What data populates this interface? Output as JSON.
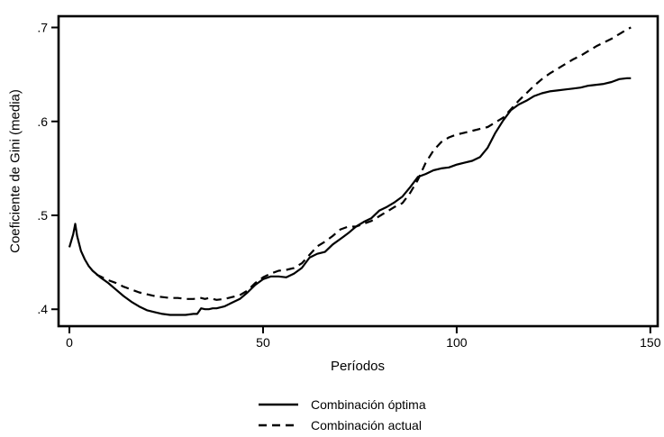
{
  "chart_data": {
    "type": "line",
    "title": "",
    "xlabel": "Períodos",
    "ylabel": "Coeficiente de Gini (media)",
    "xlim": [
      -2.8,
      151.9
    ],
    "ylim": [
      0.382,
      0.712
    ],
    "grid": false,
    "legend_position": "bottom",
    "colors": {
      "line": "#000000",
      "background": "#ffffff",
      "text": "#000000"
    },
    "xticks": [
      {
        "value": 0,
        "label": "0"
      },
      {
        "value": 50,
        "label": "50"
      },
      {
        "value": 100,
        "label": "100"
      },
      {
        "value": 150,
        "label": "150"
      }
    ],
    "yticks": [
      {
        "value": 0.4,
        "label": ".4"
      },
      {
        "value": 0.5,
        "label": ".5"
      },
      {
        "value": 0.6,
        "label": ".6"
      },
      {
        "value": 0.7,
        "label": ".7"
      }
    ],
    "series": [
      {
        "name": "Combinación óptima",
        "style": "solid",
        "dash": "none",
        "points": [
          [
            0,
            0.466
          ],
          [
            1,
            0.48
          ],
          [
            1.5,
            0.491
          ],
          [
            2,
            0.478
          ],
          [
            3,
            0.462
          ],
          [
            4,
            0.453
          ],
          [
            5,
            0.446
          ],
          [
            6,
            0.441
          ],
          [
            8,
            0.434
          ],
          [
            10,
            0.428
          ],
          [
            12,
            0.421
          ],
          [
            14,
            0.414
          ],
          [
            16,
            0.408
          ],
          [
            18,
            0.403
          ],
          [
            20,
            0.399
          ],
          [
            22,
            0.397
          ],
          [
            24,
            0.395
          ],
          [
            26,
            0.394
          ],
          [
            28,
            0.394
          ],
          [
            30,
            0.394
          ],
          [
            32,
            0.395
          ],
          [
            33,
            0.395
          ],
          [
            34,
            0.401
          ],
          [
            35,
            0.4
          ],
          [
            36,
            0.4
          ],
          [
            37,
            0.401
          ],
          [
            38,
            0.401
          ],
          [
            40,
            0.403
          ],
          [
            42,
            0.407
          ],
          [
            44,
            0.411
          ],
          [
            46,
            0.418
          ],
          [
            48,
            0.426
          ],
          [
            50,
            0.432
          ],
          [
            52,
            0.435
          ],
          [
            54,
            0.435
          ],
          [
            56,
            0.434
          ],
          [
            58,
            0.438
          ],
          [
            60,
            0.444
          ],
          [
            62,
            0.455
          ],
          [
            64,
            0.459
          ],
          [
            66,
            0.461
          ],
          [
            68,
            0.469
          ],
          [
            70,
            0.475
          ],
          [
            72,
            0.481
          ],
          [
            74,
            0.488
          ],
          [
            76,
            0.493
          ],
          [
            78,
            0.497
          ],
          [
            80,
            0.505
          ],
          [
            82,
            0.509
          ],
          [
            84,
            0.514
          ],
          [
            86,
            0.52
          ],
          [
            88,
            0.53
          ],
          [
            90,
            0.541
          ],
          [
            92,
            0.544
          ],
          [
            94,
            0.548
          ],
          [
            96,
            0.55
          ],
          [
            98,
            0.551
          ],
          [
            100,
            0.554
          ],
          [
            102,
            0.556
          ],
          [
            104,
            0.558
          ],
          [
            106,
            0.562
          ],
          [
            108,
            0.572
          ],
          [
            110,
            0.588
          ],
          [
            112,
            0.601
          ],
          [
            114,
            0.612
          ],
          [
            116,
            0.618
          ],
          [
            118,
            0.622
          ],
          [
            120,
            0.627
          ],
          [
            122,
            0.63
          ],
          [
            124,
            0.632
          ],
          [
            126,
            0.633
          ],
          [
            128,
            0.634
          ],
          [
            130,
            0.635
          ],
          [
            132,
            0.636
          ],
          [
            134,
            0.638
          ],
          [
            136,
            0.639
          ],
          [
            138,
            0.64
          ],
          [
            140,
            0.642
          ],
          [
            142,
            0.645
          ],
          [
            144,
            0.646
          ],
          [
            145,
            0.646
          ]
        ]
      },
      {
        "name": "Combinación actual",
        "style": "dashed",
        "dash": "9 6",
        "points": [
          [
            7,
            0.437
          ],
          [
            8,
            0.435
          ],
          [
            10,
            0.431
          ],
          [
            12,
            0.428
          ],
          [
            14,
            0.424
          ],
          [
            16,
            0.421
          ],
          [
            18,
            0.418
          ],
          [
            20,
            0.416
          ],
          [
            22,
            0.414
          ],
          [
            24,
            0.413
          ],
          [
            26,
            0.412
          ],
          [
            28,
            0.412
          ],
          [
            30,
            0.411
          ],
          [
            32,
            0.411
          ],
          [
            34,
            0.412
          ],
          [
            35,
            0.411
          ],
          [
            36,
            0.412
          ],
          [
            38,
            0.41
          ],
          [
            40,
            0.411
          ],
          [
            42,
            0.413
          ],
          [
            44,
            0.415
          ],
          [
            46,
            0.42
          ],
          [
            48,
            0.428
          ],
          [
            50,
            0.434
          ],
          [
            52,
            0.438
          ],
          [
            54,
            0.441
          ],
          [
            56,
            0.442
          ],
          [
            58,
            0.444
          ],
          [
            60,
            0.449
          ],
          [
            62,
            0.458
          ],
          [
            64,
            0.467
          ],
          [
            66,
            0.472
          ],
          [
            68,
            0.478
          ],
          [
            70,
            0.485
          ],
          [
            72,
            0.488
          ],
          [
            74,
            0.488
          ],
          [
            76,
            0.491
          ],
          [
            78,
            0.494
          ],
          [
            80,
            0.499
          ],
          [
            82,
            0.504
          ],
          [
            84,
            0.509
          ],
          [
            86,
            0.513
          ],
          [
            88,
            0.524
          ],
          [
            90,
            0.538
          ],
          [
            92,
            0.556
          ],
          [
            94,
            0.569
          ],
          [
            96,
            0.578
          ],
          [
            98,
            0.583
          ],
          [
            100,
            0.586
          ],
          [
            102,
            0.588
          ],
          [
            104,
            0.59
          ],
          [
            106,
            0.592
          ],
          [
            108,
            0.594
          ],
          [
            110,
            0.599
          ],
          [
            112,
            0.604
          ],
          [
            114,
            0.613
          ],
          [
            116,
            0.622
          ],
          [
            118,
            0.63
          ],
          [
            120,
            0.638
          ],
          [
            122,
            0.645
          ],
          [
            124,
            0.651
          ],
          [
            126,
            0.656
          ],
          [
            128,
            0.661
          ],
          [
            130,
            0.666
          ],
          [
            132,
            0.67
          ],
          [
            134,
            0.675
          ],
          [
            136,
            0.68
          ],
          [
            138,
            0.684
          ],
          [
            140,
            0.688
          ],
          [
            142,
            0.693
          ],
          [
            144,
            0.698
          ],
          [
            145,
            0.7
          ]
        ]
      }
    ]
  }
}
